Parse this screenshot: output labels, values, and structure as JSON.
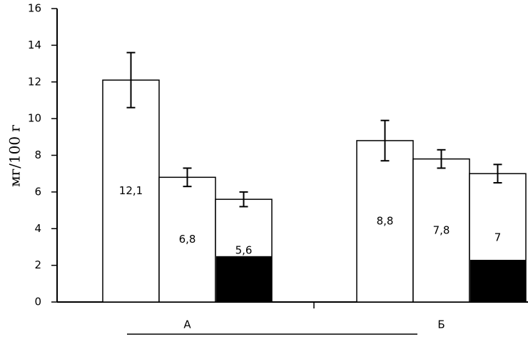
{
  "chart_data": {
    "type": "bar",
    "y_label": "мг/100 г",
    "categories": [
      "А",
      "Б"
    ],
    "series": [
      {
        "color": "#ffffff",
        "values": [
          12.1,
          8.8
        ],
        "errors": [
          1.5,
          1.1
        ],
        "value_labels": [
          "12,1",
          "8,8"
        ]
      },
      {
        "color": "#ffffff",
        "values": [
          6.8,
          7.8
        ],
        "errors": [
          0.5,
          0.5
        ],
        "value_labels": [
          "6,8",
          "7,8"
        ]
      },
      {
        "color": "#ffffff",
        "values": [
          5.6,
          7
        ],
        "errors": [
          0.4,
          0.5
        ],
        "value_labels": [
          "5,6",
          "7"
        ],
        "dark_values": [
          2.5,
          2.3
        ],
        "dark_color": "#000000"
      }
    ],
    "ylim": [
      0,
      16
    ],
    "yticks": [
      0,
      2,
      4,
      6,
      8,
      10,
      12,
      14,
      16
    ],
    "grid": false
  }
}
